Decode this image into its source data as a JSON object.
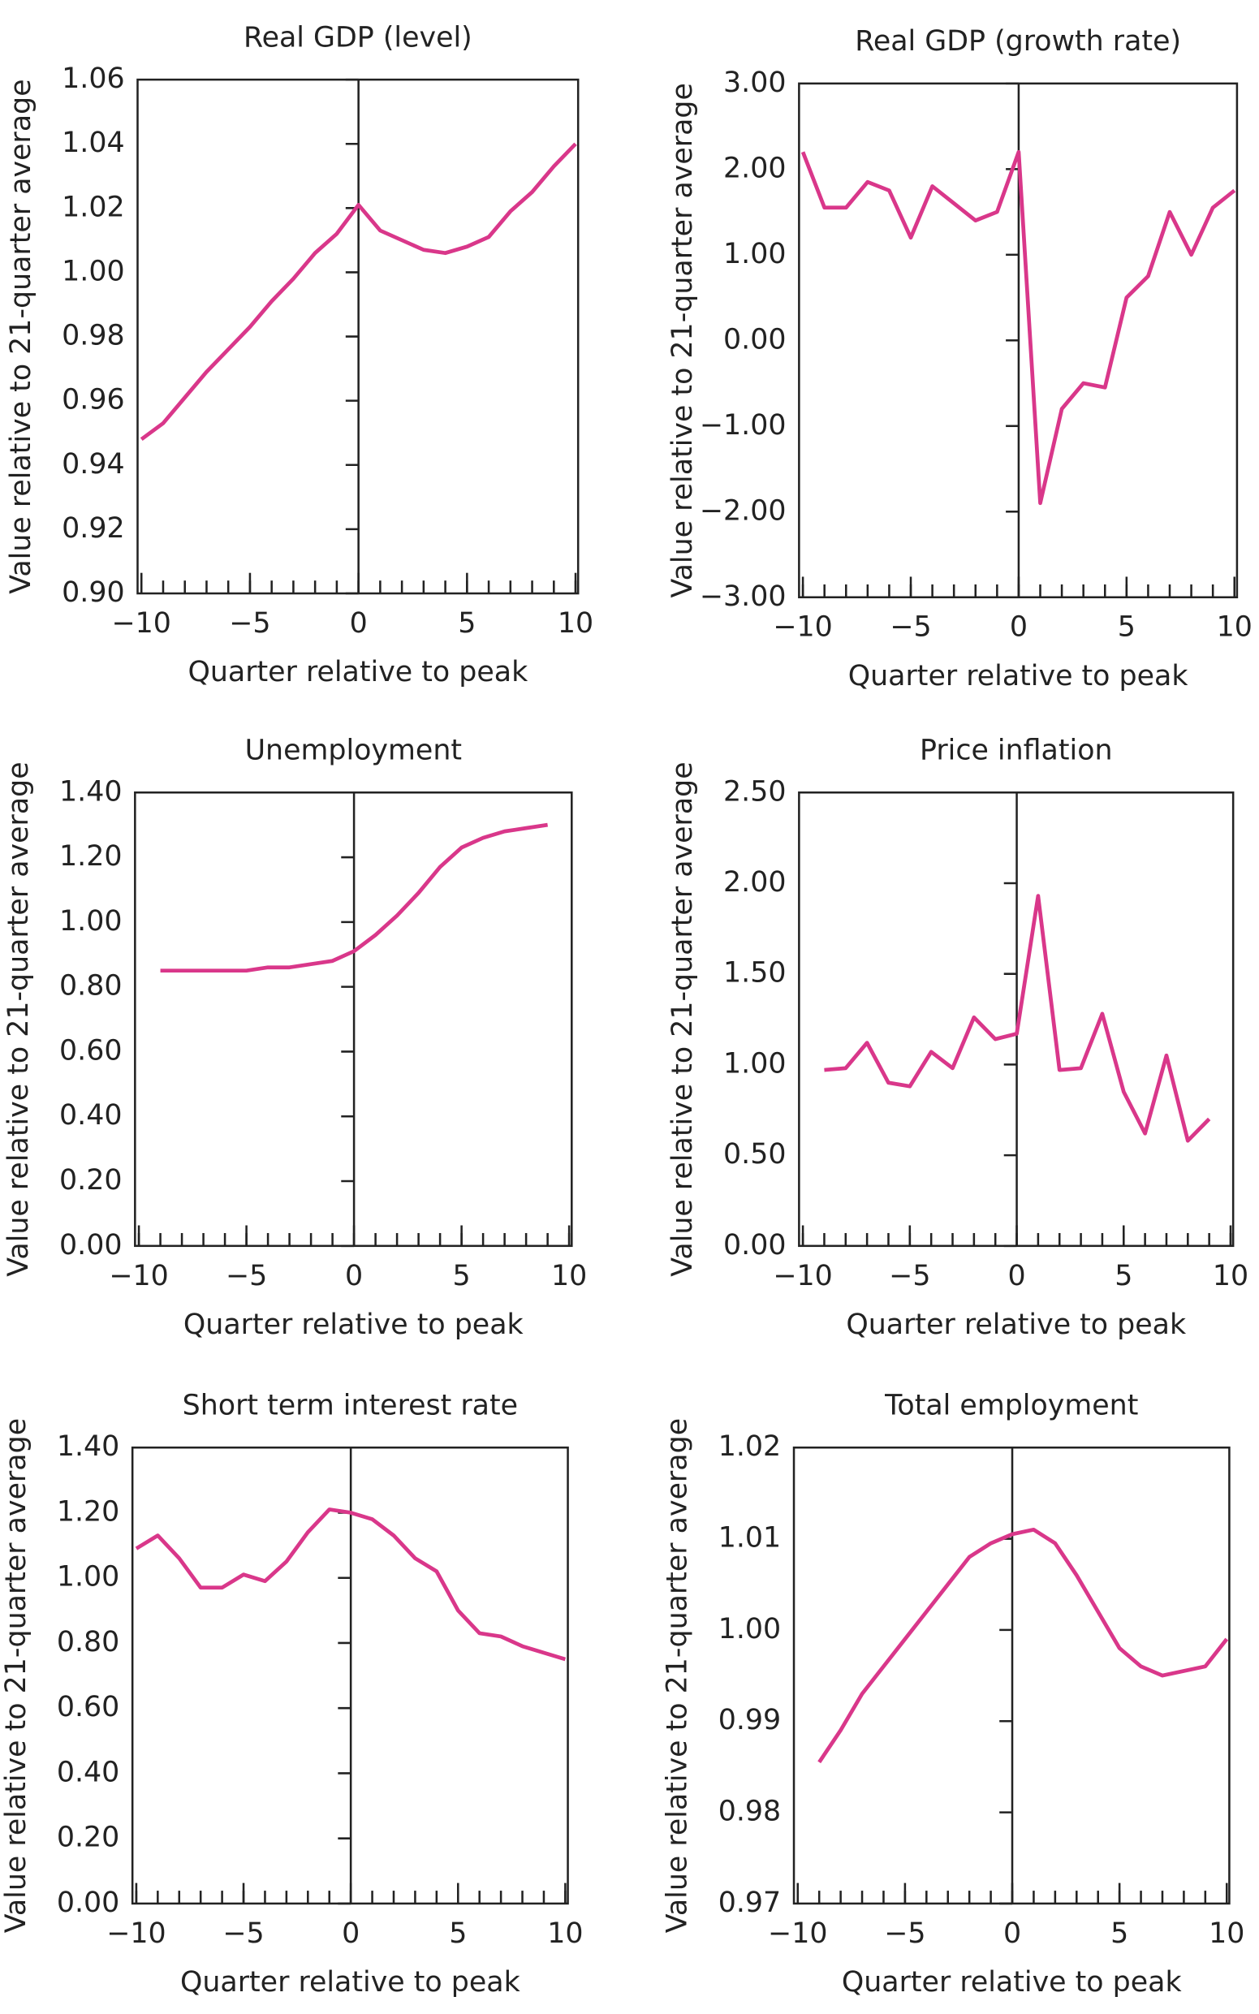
{
  "chart_data": [
    {
      "type": "line",
      "title": "Real GDP (level)",
      "xlabel": "Quarter relative to peak",
      "ylabel": "Value relative to 21-quarter average",
      "color": "#d9378a",
      "grid": false,
      "x": [
        -10,
        -9,
        -8,
        -7,
        -6,
        -5,
        -4,
        -3,
        -2,
        -1,
        0,
        1,
        2,
        3,
        4,
        5,
        6,
        7,
        8,
        9,
        10
      ],
      "series": [
        {
          "name": "Real GDP (level)",
          "color": "#d9378a",
          "values": [
            0.948,
            0.953,
            0.961,
            0.969,
            0.976,
            0.983,
            0.991,
            0.998,
            1.006,
            1.012,
            1.021,
            1.013,
            1.01,
            1.007,
            1.006,
            1.008,
            1.011,
            1.019,
            1.025,
            1.033,
            1.04
          ]
        }
      ],
      "xlim": [
        -10,
        10
      ],
      "xticks": [
        {
          "value": -10,
          "label": "−10"
        },
        {
          "value": -5,
          "label": "−5"
        },
        0,
        5,
        10
      ],
      "ylim": [
        0.9,
        1.06
      ],
      "yticks": [
        {
          "value": 0.9,
          "label": "0.90"
        },
        0.92,
        0.94,
        0.96,
        0.98,
        {
          "value": 1,
          "label": "1.00"
        },
        1.02,
        1.04,
        1.06
      ]
    },
    {
      "type": "line",
      "title": "Real GDP (growth rate)",
      "xlabel": "Quarter relative to peak",
      "ylabel": "Value relative to 21-quarter average",
      "color": "#d9378a",
      "grid": false,
      "x": [
        -10,
        -9,
        -8,
        -7,
        -6,
        -5,
        -4,
        -3,
        -2,
        -1,
        0,
        1,
        2,
        3,
        4,
        5,
        6,
        7,
        8,
        9,
        10
      ],
      "series": [
        {
          "name": "Real GDP (growth rate)",
          "color": "#d9378a",
          "values": [
            2.2,
            1.55,
            1.55,
            1.85,
            1.75,
            1.2,
            1.8,
            1.6,
            1.4,
            1.5,
            2.2,
            -1.9,
            -0.8,
            -0.5,
            -0.55,
            0.5,
            0.75,
            1.5,
            1.0,
            1.55,
            1.75
          ]
        }
      ],
      "xlim": [
        -10,
        10
      ],
      "xticks": [
        {
          "value": -10,
          "label": "−10"
        },
        {
          "value": -5,
          "label": "−5"
        },
        0,
        5,
        10
      ],
      "ylim": [
        -3,
        3
      ],
      "yticks": [
        {
          "value": -3,
          "label": "−3.00"
        },
        {
          "value": -2,
          "label": "−2.00"
        },
        {
          "value": -1,
          "label": "−1.00"
        },
        {
          "value": 0,
          "label": "0.00"
        },
        {
          "value": 1,
          "label": "1.00"
        },
        {
          "value": 2,
          "label": "2.00"
        },
        {
          "value": 3,
          "label": "3.00"
        }
      ]
    },
    {
      "type": "line",
      "title": "Unemployment",
      "xlabel": "Quarter relative to peak",
      "ylabel": "Value relative to 21-quarter average",
      "color": "#d9378a",
      "grid": false,
      "x": [
        -10,
        -9,
        -8,
        -7,
        -6,
        -5,
        -4,
        -3,
        -2,
        -1,
        0,
        1,
        2,
        3,
        4,
        5,
        6,
        7,
        8,
        9,
        10
      ],
      "series": [
        {
          "name": "Unemployment",
          "color": "#d9378a",
          "values": [
            null,
            0.85,
            0.85,
            0.85,
            0.85,
            0.85,
            0.86,
            0.86,
            0.87,
            0.88,
            0.91,
            0.96,
            1.02,
            1.09,
            1.17,
            1.23,
            1.26,
            1.28,
            1.29,
            1.3,
            null
          ]
        }
      ],
      "xlim": [
        -10,
        10
      ],
      "xticks": [
        {
          "value": -10,
          "label": "−10"
        },
        {
          "value": -5,
          "label": "−5"
        },
        0,
        5,
        10
      ],
      "ylim": [
        0,
        1.4
      ],
      "yticks": [
        {
          "value": 0,
          "label": "0.00"
        },
        {
          "value": 0.2,
          "label": "0.20"
        },
        {
          "value": 0.4,
          "label": "0.40"
        },
        {
          "value": 0.6,
          "label": "0.60"
        },
        {
          "value": 0.8,
          "label": "0.80"
        },
        {
          "value": 1,
          "label": "1.00"
        },
        {
          "value": 1.2,
          "label": "1.20"
        },
        {
          "value": 1.4,
          "label": "1.40"
        }
      ]
    },
    {
      "type": "line",
      "title": "Price inflation",
      "xlabel": "Quarter relative to peak",
      "ylabel": "Value relative to 21-quarter average",
      "color": "#d9378a",
      "grid": false,
      "x": [
        -10,
        -9,
        -8,
        -7,
        -6,
        -5,
        -4,
        -3,
        -2,
        -1,
        0,
        1,
        2,
        3,
        4,
        5,
        6,
        7,
        8,
        9,
        10
      ],
      "series": [
        {
          "name": "Price inflation",
          "color": "#d9378a",
          "values": [
            null,
            0.97,
            0.98,
            1.12,
            0.9,
            0.88,
            1.07,
            0.98,
            1.26,
            1.14,
            1.17,
            1.93,
            0.97,
            0.98,
            1.28,
            0.85,
            0.62,
            1.05,
            0.58,
            0.7,
            null
          ]
        }
      ],
      "xlim": [
        -10,
        10
      ],
      "xticks": [
        {
          "value": -10,
          "label": "−10"
        },
        {
          "value": -5,
          "label": "−5"
        },
        0,
        5,
        10
      ],
      "ylim": [
        0,
        2.5
      ],
      "yticks": [
        {
          "value": 0,
          "label": "0.00"
        },
        {
          "value": 0.5,
          "label": "0.50"
        },
        {
          "value": 1,
          "label": "1.00"
        },
        {
          "value": 1.5,
          "label": "1.50"
        },
        {
          "value": 2,
          "label": "2.00"
        },
        {
          "value": 2.5,
          "label": "2.50"
        }
      ]
    },
    {
      "type": "line",
      "title": "Short term interest rate",
      "xlabel": "Quarter relative to peak",
      "ylabel": "Value relative to 21-quarter average",
      "color": "#d9378a",
      "grid": false,
      "x": [
        -10,
        -9,
        -8,
        -7,
        -6,
        -5,
        -4,
        -3,
        -2,
        -1,
        0,
        1,
        2,
        3,
        4,
        5,
        6,
        7,
        8,
        9,
        10
      ],
      "series": [
        {
          "name": "Short term interest rate",
          "color": "#d9378a",
          "values": [
            1.09,
            1.13,
            1.06,
            0.97,
            0.97,
            1.01,
            0.99,
            1.05,
            1.14,
            1.21,
            1.2,
            1.18,
            1.13,
            1.06,
            1.02,
            0.9,
            0.83,
            0.82,
            0.79,
            0.77,
            0.75
          ]
        }
      ],
      "xlim": [
        -10,
        10
      ],
      "xticks": [
        {
          "value": -10,
          "label": "−10"
        },
        {
          "value": -5,
          "label": "−5"
        },
        0,
        5,
        10
      ],
      "ylim": [
        0,
        1.4
      ],
      "yticks": [
        {
          "value": 0,
          "label": "0.00"
        },
        {
          "value": 0.2,
          "label": "0.20"
        },
        {
          "value": 0.4,
          "label": "0.40"
        },
        {
          "value": 0.6,
          "label": "0.60"
        },
        {
          "value": 0.8,
          "label": "0.80"
        },
        {
          "value": 1,
          "label": "1.00"
        },
        {
          "value": 1.2,
          "label": "1.20"
        },
        {
          "value": 1.4,
          "label": "1.40"
        }
      ]
    },
    {
      "type": "line",
      "title": "Total employment",
      "xlabel": "Quarter relative to peak",
      "ylabel": "Value relative to 21-quarter average",
      "color": "#d9378a",
      "grid": false,
      "x": [
        -10,
        -9,
        -8,
        -7,
        -6,
        -5,
        -4,
        -3,
        -2,
        -1,
        0,
        1,
        2,
        3,
        4,
        5,
        6,
        7,
        8,
        9,
        10
      ],
      "series": [
        {
          "name": "Total employment",
          "color": "#d9378a",
          "values": [
            null,
            0.9855,
            0.989,
            0.993,
            0.996,
            0.999,
            1.002,
            1.005,
            1.008,
            1.0095,
            1.0105,
            1.011,
            1.0095,
            1.006,
            1.002,
            0.998,
            0.996,
            0.995,
            0.9955,
            0.996,
            0.999
          ]
        }
      ],
      "xlim": [
        -10,
        10
      ],
      "xticks": [
        {
          "value": -10,
          "label": "−10"
        },
        {
          "value": -5,
          "label": "−5"
        },
        0,
        5,
        10
      ],
      "ylim": [
        0.97,
        1.02
      ],
      "yticks": [
        0.97,
        0.98,
        0.99,
        {
          "value": 1,
          "label": "1.00"
        },
        1.01,
        1.02
      ]
    }
  ]
}
